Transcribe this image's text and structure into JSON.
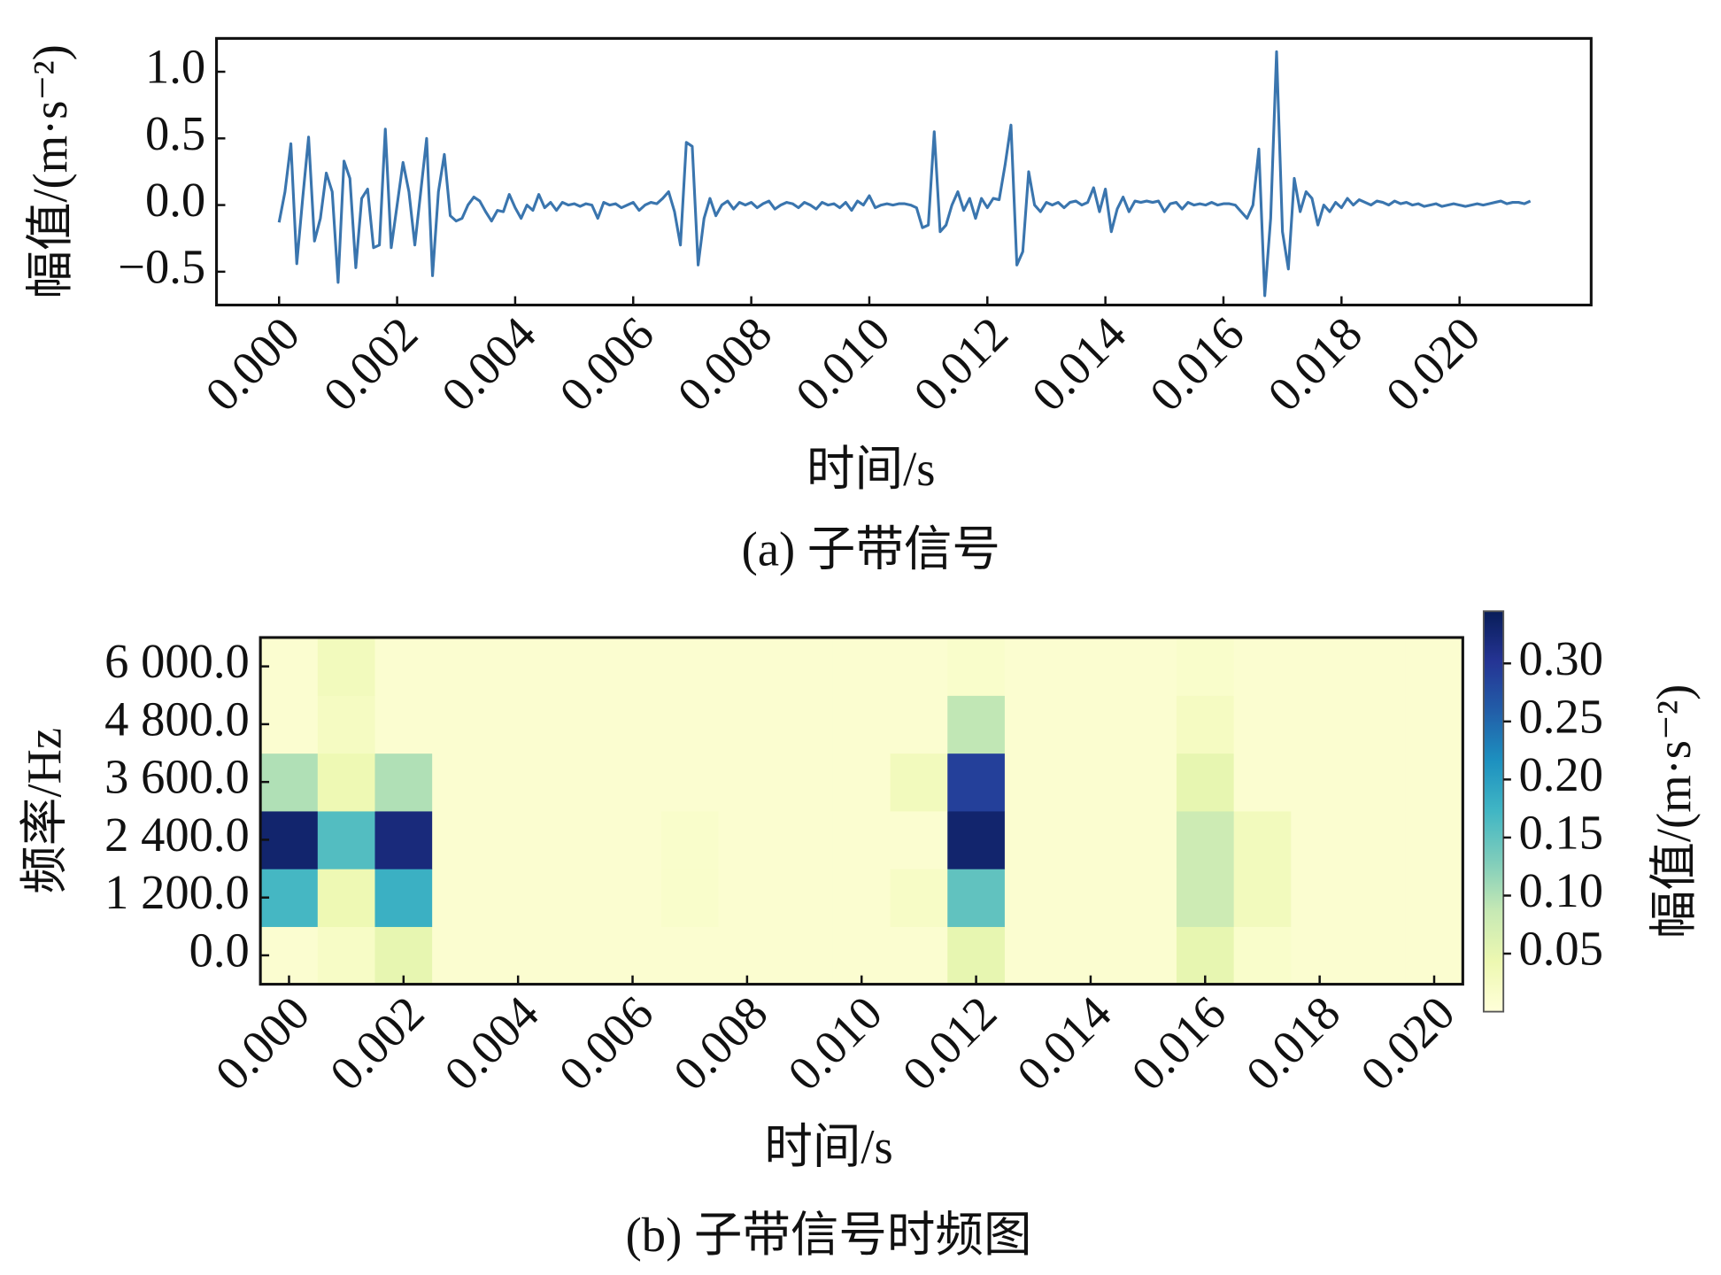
{
  "chart_data": [
    {
      "type": "line",
      "caption": "(a) 子带信号",
      "xlabel": "时间/s",
      "ylabel": "幅值/(m·s⁻²)",
      "color": "#3a75ae",
      "x": [
        0,
        0.0001,
        0.0002,
        0.0003,
        0.0004,
        0.0005,
        0.0006,
        0.0007,
        0.0008,
        0.0009,
        0.001,
        0.0011,
        0.0012,
        0.0013,
        0.0014,
        0.0015,
        0.0016,
        0.0017,
        0.0018,
        0.0019,
        0.002,
        0.0021,
        0.0022,
        0.0023,
        0.0024,
        0.0025,
        0.0026,
        0.0027,
        0.0028,
        0.0029,
        0.003,
        0.0031,
        0.0032,
        0.0033,
        0.0034,
        0.0035,
        0.0036,
        0.0037,
        0.0038,
        0.0039,
        0.004,
        0.0041,
        0.0042,
        0.0043,
        0.0044,
        0.0045,
        0.0046,
        0.0047,
        0.0048,
        0.0049,
        0.005,
        0.0051,
        0.0052,
        0.0053,
        0.0054,
        0.0055,
        0.0056,
        0.0057,
        0.0058,
        0.0059,
        0.006,
        0.0061,
        0.0062,
        0.0063,
        0.0064,
        0.0065,
        0.0066,
        0.0067,
        0.0068,
        0.0069,
        0.007,
        0.0071,
        0.0072,
        0.0073,
        0.0074,
        0.0075,
        0.0076,
        0.0077,
        0.0078,
        0.0079,
        0.008,
        0.0081,
        0.0082,
        0.0083,
        0.0084,
        0.0085,
        0.0086,
        0.0087,
        0.0088,
        0.0089,
        0.009,
        0.0091,
        0.0092,
        0.0093,
        0.0094,
        0.0095,
        0.0096,
        0.0097,
        0.0098,
        0.0099,
        0.01,
        0.0101,
        0.0102,
        0.0103,
        0.0104,
        0.0105,
        0.0106,
        0.0107,
        0.0108,
        0.0109,
        0.011,
        0.0111,
        0.0112,
        0.0113,
        0.0114,
        0.0115,
        0.0116,
        0.0117,
        0.0118,
        0.0119,
        0.012,
        0.0121,
        0.0122,
        0.0123,
        0.0124,
        0.0125,
        0.0126,
        0.0127,
        0.0128,
        0.0129,
        0.013,
        0.0131,
        0.0132,
        0.0133,
        0.0134,
        0.0135,
        0.0136,
        0.0137,
        0.0138,
        0.0139,
        0.014,
        0.0141,
        0.0142,
        0.0143,
        0.0144,
        0.0145,
        0.0146,
        0.0147,
        0.0148,
        0.0149,
        0.015,
        0.0151,
        0.0152,
        0.0153,
        0.0154,
        0.0155,
        0.0156,
        0.0157,
        0.0158,
        0.0159,
        0.016,
        0.0161,
        0.0162,
        0.0163,
        0.0164,
        0.0165,
        0.0166,
        0.0167,
        0.0168,
        0.0169,
        0.017,
        0.0171,
        0.0172,
        0.0173,
        0.0174,
        0.0175,
        0.0176,
        0.0177,
        0.0178,
        0.0179,
        0.018,
        0.0181,
        0.0182,
        0.0183,
        0.0184,
        0.0185,
        0.0186,
        0.0187,
        0.0188,
        0.0189,
        0.019,
        0.0191,
        0.0192,
        0.0193,
        0.0194,
        0.0195,
        0.0196,
        0.0197,
        0.0198,
        0.0199,
        0.02,
        0.0201,
        0.0202,
        0.0203,
        0.0204,
        0.0205,
        0.0206,
        0.0207,
        0.0208,
        0.0209,
        0.021,
        0.0211,
        0.0212
      ],
      "values": [
        -0.13,
        0.1,
        0.46,
        -0.44,
        0.05,
        0.51,
        -0.27,
        -0.1,
        0.24,
        0.1,
        -0.58,
        0.33,
        0.2,
        -0.47,
        0.05,
        0.12,
        -0.32,
        -0.3,
        0.57,
        -0.32,
        0.0,
        0.32,
        0.1,
        -0.3,
        0.1,
        0.5,
        -0.53,
        0.1,
        0.38,
        -0.08,
        -0.12,
        -0.1,
        0.0,
        0.06,
        0.03,
        -0.05,
        -0.12,
        -0.04,
        -0.05,
        0.08,
        -0.02,
        -0.1,
        0.0,
        -0.04,
        0.08,
        -0.02,
        0.02,
        -0.04,
        0.02,
        0.0,
        0.01,
        -0.01,
        0.01,
        0.0,
        -0.1,
        0.02,
        0.0,
        0.01,
        -0.02,
        0.0,
        0.02,
        -0.04,
        0.0,
        0.02,
        0.01,
        0.05,
        0.1,
        -0.05,
        -0.3,
        0.47,
        0.44,
        -0.45,
        -0.1,
        0.05,
        -0.08,
        0.0,
        0.03,
        -0.03,
        0.02,
        0.0,
        0.02,
        -0.02,
        0.01,
        0.03,
        -0.03,
        0.0,
        0.02,
        0.01,
        -0.02,
        0.02,
        0.0,
        -0.03,
        0.02,
        0.0,
        0.01,
        -0.02,
        0.02,
        -0.04,
        0.03,
        0.0,
        0.07,
        -0.02,
        0.0,
        0.01,
        0.0,
        0.01,
        0.01,
        0.0,
        -0.02,
        -0.17,
        -0.15,
        0.55,
        -0.2,
        -0.15,
        0.0,
        0.1,
        -0.04,
        0.05,
        -0.1,
        0.05,
        -0.02,
        0.05,
        0.04,
        0.3,
        0.6,
        -0.45,
        -0.35,
        0.25,
        0.0,
        -0.05,
        0.02,
        0.0,
        0.02,
        -0.02,
        0.02,
        0.03,
        0.0,
        0.02,
        0.13,
        -0.05,
        0.12,
        -0.2,
        -0.03,
        0.06,
        -0.05,
        0.03,
        0.02,
        0.03,
        0.02,
        0.03,
        -0.05,
        0.01,
        0.02,
        -0.03,
        0.02,
        0.0,
        0.01,
        0.0,
        0.02,
        0.0,
        0.01,
        0.01,
        0.0,
        -0.05,
        -0.1,
        0.0,
        0.42,
        -0.68,
        -0.1,
        1.15,
        -0.2,
        -0.48,
        0.2,
        -0.05,
        0.1,
        0.05,
        -0.15,
        0.0,
        -0.05,
        0.02,
        -0.02,
        0.05,
        0.0,
        0.04,
        0.02,
        0.0,
        0.03,
        0.02,
        0.0,
        0.03,
        0.01,
        0.02,
        0.0,
        0.01,
        -0.01,
        0.0,
        0.01,
        -0.01,
        0.0,
        0.01,
        0.0,
        -0.01,
        0.0,
        0.01,
        0.0,
        0.01,
        0.02,
        0.03,
        0.01,
        0.02,
        0.02,
        0.01,
        0.03
      ],
      "xlim": [
        -0.00106,
        0.02223
      ],
      "ylim": [
        -0.75,
        1.25
      ],
      "xticks": [
        {
          "value": 0,
          "label": "0.000"
        },
        {
          "value": 0.002,
          "label": "0.002"
        },
        {
          "value": 0.004,
          "label": "0.004"
        },
        {
          "value": 0.006,
          "label": "0.006"
        },
        {
          "value": 0.008,
          "label": "0.008"
        },
        {
          "value": 0.01,
          "label": "0.010"
        },
        {
          "value": 0.012,
          "label": "0.012"
        },
        {
          "value": 0.014,
          "label": "0.014"
        },
        {
          "value": 0.016,
          "label": "0.016"
        },
        {
          "value": 0.018,
          "label": "0.018"
        },
        {
          "value": 0.02,
          "label": "0.020"
        }
      ],
      "yticks": [
        {
          "value": -0.5,
          "label": "−0.5"
        },
        {
          "value": 0,
          "label": "0.0"
        },
        {
          "value": 0.5,
          "label": "0.5"
        },
        {
          "value": 1,
          "label": "1.0"
        }
      ]
    },
    {
      "type": "heatmap",
      "caption": "(b) 子带信号时频图",
      "xlabel": "时间/s",
      "ylabel": "频率/Hz",
      "clabel": "幅值/(m·s⁻²)",
      "colormap": [
        "#ffffd9",
        "#edf8b1",
        "#c7e9b4",
        "#7fcdbb",
        "#41b6c4",
        "#1d91c0",
        "#225ea8",
        "#253494",
        "#081d58"
      ],
      "x": [
        0,
        0.001,
        0.002,
        0.003,
        0.004,
        0.005,
        0.006,
        0.007,
        0.008,
        0.009,
        0.01,
        0.011,
        0.012,
        0.013,
        0.014,
        0.015,
        0.016,
        0.017,
        0.018,
        0.019,
        0.02
      ],
      "y": [
        0,
        1200,
        2400,
        3600,
        4800,
        6000
      ],
      "z": [
        [
          0.01,
          0.02,
          0.05,
          0.01,
          0.01,
          0.01,
          0.01,
          0.01,
          0.01,
          0.01,
          0.01,
          0.01,
          0.05,
          0.01,
          0.01,
          0.01,
          0.05,
          0.015,
          0.01,
          0.01,
          0.01
        ],
        [
          0.17,
          0.04,
          0.18,
          0.01,
          0.01,
          0.01,
          0.01,
          0.015,
          0.01,
          0.01,
          0.01,
          0.02,
          0.15,
          0.01,
          0.01,
          0.01,
          0.08,
          0.03,
          0.01,
          0.01,
          0.01
        ],
        [
          0.33,
          0.16,
          0.32,
          0.01,
          0.01,
          0.01,
          0.01,
          0.015,
          0.01,
          0.01,
          0.01,
          0.01,
          0.33,
          0.01,
          0.01,
          0.01,
          0.08,
          0.03,
          0.01,
          0.01,
          0.01
        ],
        [
          0.1,
          0.04,
          0.1,
          0.01,
          0.01,
          0.01,
          0.01,
          0.01,
          0.01,
          0.01,
          0.01,
          0.03,
          0.29,
          0.01,
          0.01,
          0.01,
          0.05,
          0.01,
          0.01,
          0.01,
          0.01
        ],
        [
          0.01,
          0.025,
          0.01,
          0.01,
          0.01,
          0.01,
          0.01,
          0.01,
          0.01,
          0.01,
          0.01,
          0.01,
          0.09,
          0.01,
          0.01,
          0.01,
          0.025,
          0.01,
          0.01,
          0.01,
          0.01
        ],
        [
          0.01,
          0.03,
          0.01,
          0.01,
          0.01,
          0.01,
          0.01,
          0.01,
          0.01,
          0.01,
          0.01,
          0.01,
          0.015,
          0.01,
          0.01,
          0.01,
          0.015,
          0.01,
          0.01,
          0.01,
          0.01
        ]
      ],
      "xlim": [
        -0.0005,
        0.0205
      ],
      "ylim": [
        -600,
        6600
      ],
      "clim": [
        0,
        0.345
      ],
      "xticks": [
        {
          "value": 0,
          "label": "0.000"
        },
        {
          "value": 0.002,
          "label": "0.002"
        },
        {
          "value": 0.004,
          "label": "0.004"
        },
        {
          "value": 0.006,
          "label": "0.006"
        },
        {
          "value": 0.008,
          "label": "0.008"
        },
        {
          "value": 0.01,
          "label": "0.010"
        },
        {
          "value": 0.012,
          "label": "0.012"
        },
        {
          "value": 0.014,
          "label": "0.014"
        },
        {
          "value": 0.016,
          "label": "0.016"
        },
        {
          "value": 0.018,
          "label": "0.018"
        },
        {
          "value": 0.02,
          "label": "0.020"
        }
      ],
      "yticks": [
        {
          "value": 0,
          "label": "0.0"
        },
        {
          "value": 1200,
          "label": "1 200.0"
        },
        {
          "value": 2400,
          "label": "2 400.0"
        },
        {
          "value": 3600,
          "label": "3 600.0"
        },
        {
          "value": 4800,
          "label": "4 800.0"
        },
        {
          "value": 6000,
          "label": "6 000.0"
        }
      ],
      "cticks": [
        0.05,
        {
          "value": 0.1,
          "label": "0.10"
        },
        0.15,
        {
          "value": 0.2,
          "label": "0.20"
        },
        0.25,
        {
          "value": 0.3,
          "label": "0.30"
        }
      ]
    }
  ]
}
